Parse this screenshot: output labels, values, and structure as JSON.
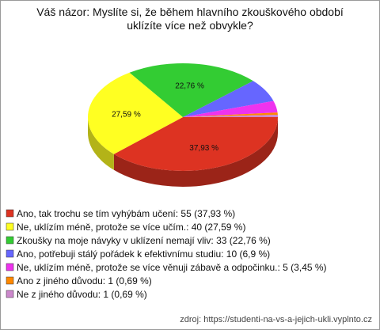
{
  "chart_data": {
    "type": "pie",
    "title": [
      "Váš názor: Myslíte si, že během hlavního zkouškového období",
      "uklízíte více než obvykle?"
    ],
    "categories": [
      "Ano, tak trochu se tím vyhýbám učení",
      "Ne, uklízím méně, protože se více učím.",
      "Zkoušky na moje návyky v uklízení nemají vliv",
      "Ano, potřebuji stálý pořádek k efektivnímu studiu",
      "Ne, uklízím méně, protože se více věnuji zábavě a odpočinku.",
      "Ano z jiného důvodu",
      "Ne z jiného důvodu"
    ],
    "legend_labels": [
      "Ano, tak trochu se tím vyhýbám učení: 55 (37,93 %)",
      "Ne, uklízím méně, protože se více učím.: 40 (27,59 %)",
      "Zkoušky na moje návyky v uklízení nemají vliv: 33 (22,76 %)",
      "Ano, potřebuji stálý pořádek k efektivnímu studiu: 10 (6,9 %)",
      "Ne, uklízím méně, protože se více věnuji zábavě a odpočinku.: 5 (3,45 %)",
      "Ano z jiného důvodu: 1 (0,69 %)",
      "Ne z jiného důvodu: 1 (0,69 %)"
    ],
    "values": [
      37.93,
      27.59,
      22.76,
      6.9,
      3.45,
      0.69,
      0.69
    ],
    "value_labels": [
      "37,93 %",
      "27,59 %",
      "22,76 %",
      null,
      null,
      null,
      null
    ],
    "colors": [
      "#dd3322",
      "#ffff22",
      "#33cc33",
      "#6666ff",
      "#ee33ee",
      "#ff8800",
      "#cc88cc"
    ],
    "source": "zdroj: https://studenti-na-vs-a-jejich-ukli.vyplnto.cz"
  }
}
